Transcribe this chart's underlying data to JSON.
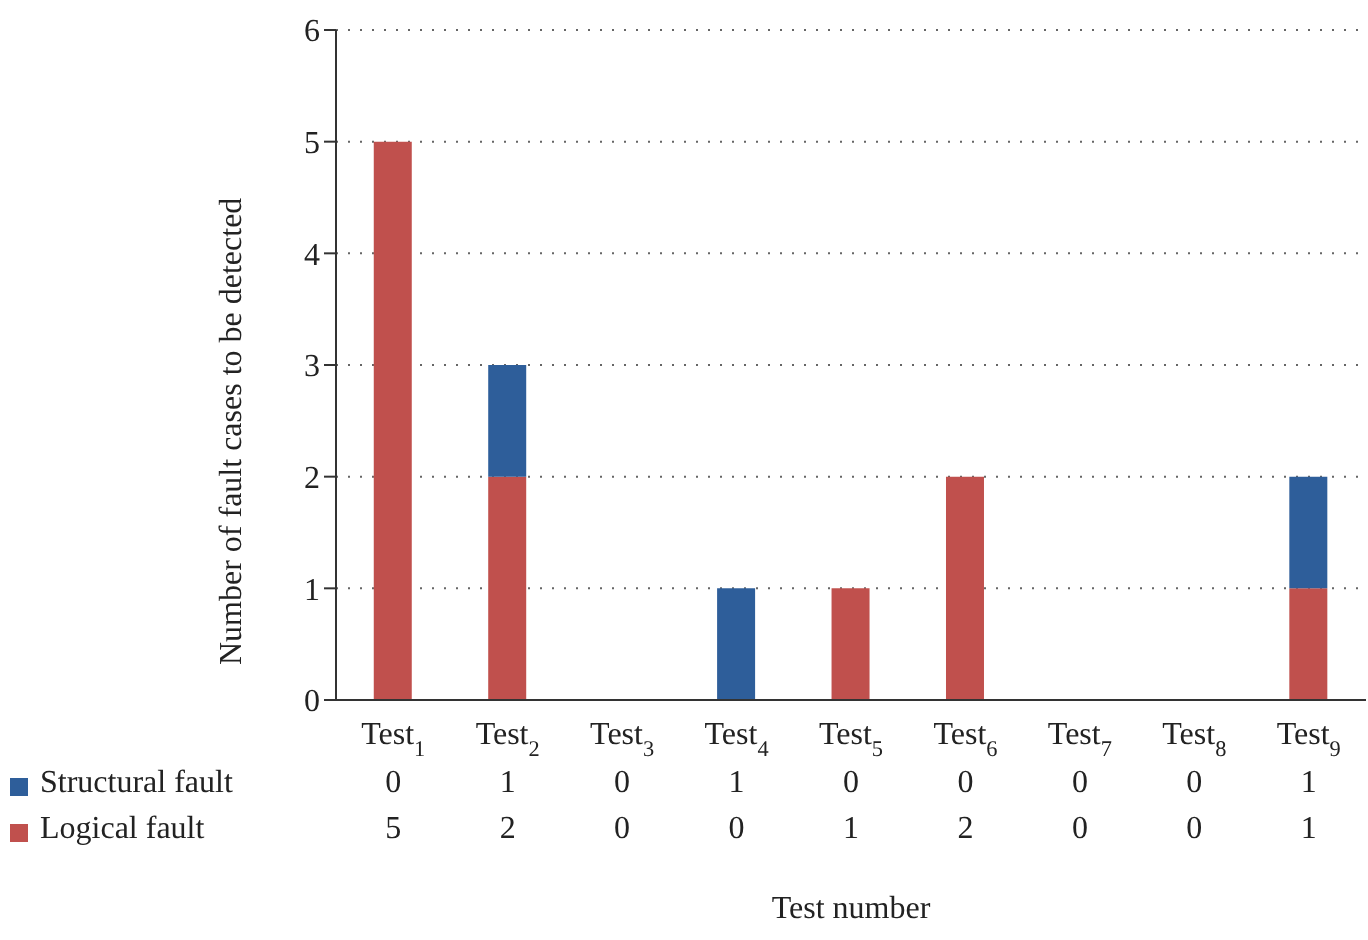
{
  "chart_data": {
    "type": "bar",
    "stacked": true,
    "xlabel": "Test number",
    "ylabel": "Number of fault cases to be detected",
    "categories": [
      "Test$_{1}$",
      "Test$_{2}$",
      "Test$_{3}$",
      "Test$_{4}$",
      "Test$_{5}$",
      "Test$_{6}$",
      "Test$_{7}$",
      "Test$_{8}$",
      "Test$_{9}$"
    ],
    "series": [
      {
        "name": "Logical fault",
        "color": "#c0504d",
        "values": [
          5,
          2,
          0,
          0,
          1,
          2,
          0,
          0,
          1
        ]
      },
      {
        "name": "Structural fault",
        "color": "#2e5e9a",
        "values": [
          0,
          1,
          0,
          1,
          0,
          0,
          0,
          0,
          1
        ]
      }
    ],
    "ylim": [
      0,
      6
    ],
    "yticks": [
      0,
      1,
      2,
      3,
      4,
      5,
      6
    ],
    "grid": "y",
    "legend": "bottom left",
    "data_labels": true
  }
}
